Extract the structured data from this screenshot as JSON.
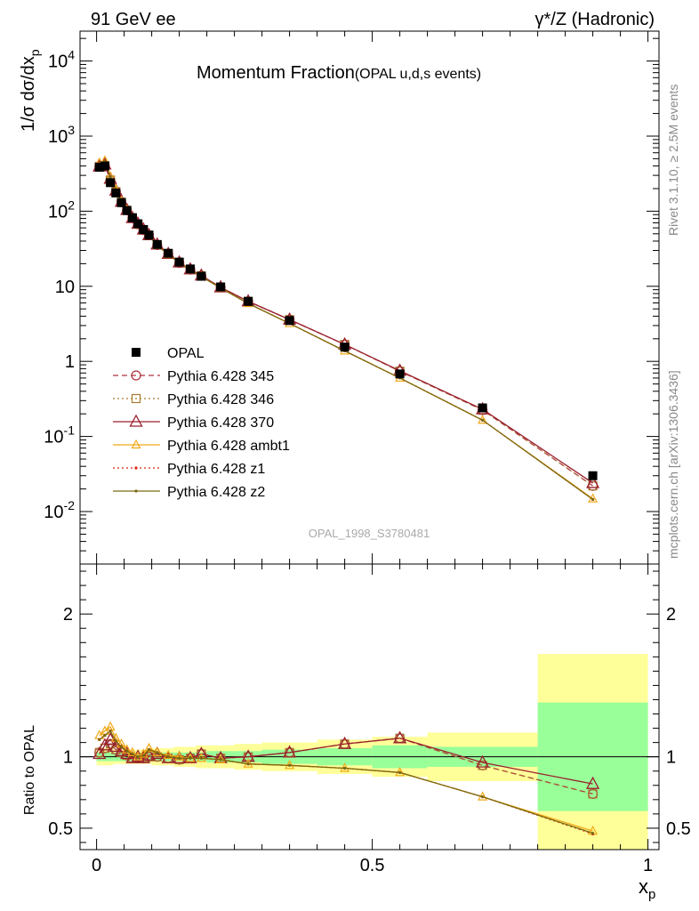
{
  "header": {
    "left": "91 GeV ee",
    "right": "γ*/Z (Hadronic)"
  },
  "side_text": {
    "rivet": "Rivet 3.1.10, ≥ 2.5M events",
    "mcplots": "mcplots.cern.ch [arXiv:1306.3436]"
  },
  "main_title": {
    "main": "Momentum Fraction",
    "sub": "(OPAL u,d,s events)"
  },
  "watermark": "OPAL_1998_S3780481",
  "chart_data": [
    {
      "type": "scatter",
      "panel": "main",
      "ylabel": "1/σ dσ/dx",
      "ylabel_sub": "p",
      "yscale": "log",
      "ylim": [
        0.002,
        25000
      ],
      "xlim": [
        -0.03,
        1.02
      ],
      "ytick_labels": [
        "10^-2",
        "10^-1",
        "1",
        "10",
        "10^2",
        "10^3",
        "10^4"
      ],
      "legend_position": "middle-left",
      "x": [
        0.005,
        0.015,
        0.025,
        0.035,
        0.045,
        0.055,
        0.065,
        0.075,
        0.085,
        0.095,
        0.11,
        0.13,
        0.15,
        0.17,
        0.19,
        0.225,
        0.275,
        0.35,
        0.45,
        0.55,
        0.7,
        0.9
      ],
      "series": [
        {
          "name": "OPAL",
          "color": "#000000",
          "style": "data",
          "values": [
            385,
            400,
            240,
            175,
            130,
            102,
            82,
            68,
            57,
            48,
            36,
            27.5,
            21,
            17,
            13.6,
            9.8,
            6.3,
            3.5,
            1.55,
            0.68,
            0.24,
            0.03
          ]
        },
        {
          "name": "Pythia 6.428 345",
          "color": "#b03040",
          "style": "dashed-circle",
          "values": [
            395,
            405,
            260,
            182,
            132,
            103,
            81,
            67,
            56,
            48,
            35.5,
            27,
            20.5,
            16.7,
            13.8,
            9.7,
            6.3,
            3.6,
            1.68,
            0.74,
            0.225,
            0.022
          ]
        },
        {
          "name": "Pythia 6.428 346",
          "color": "#a87a30",
          "style": "dotted-square",
          "values": [
            395,
            405,
            260,
            182,
            132,
            103,
            81,
            67,
            56,
            48,
            35.5,
            27,
            20.5,
            16.7,
            13.8,
            9.7,
            6.3,
            3.6,
            1.68,
            0.74,
            0.225,
            0.022
          ]
        },
        {
          "name": "Pythia 6.428 370",
          "color": "#9a1f2e",
          "style": "solid-triangle",
          "values": [
            395,
            420,
            270,
            188,
            134,
            104,
            81,
            68,
            57,
            48,
            36,
            27,
            20.8,
            16.8,
            13.9,
            9.7,
            6.3,
            3.6,
            1.68,
            0.75,
            0.23,
            0.024
          ]
        },
        {
          "name": "Pythia 6.428 ambt1",
          "color": "#f0a818",
          "style": "solid-open-triangle",
          "values": [
            440,
            470,
            290,
            195,
            136,
            104,
            81,
            66,
            56,
            47,
            35,
            26.5,
            20.5,
            16.5,
            13.5,
            9.5,
            5.9,
            3.2,
            1.38,
            0.6,
            0.165,
            0.0148
          ]
        },
        {
          "name": "Pythia 6.428 z1",
          "color": "#e02010",
          "style": "dotted-dot",
          "values": [
            430,
            460,
            285,
            193,
            135,
            104,
            81,
            66,
            56,
            47,
            35,
            26.5,
            20.5,
            16.5,
            13.5,
            9.5,
            5.9,
            3.2,
            1.38,
            0.6,
            0.165,
            0.0145
          ]
        },
        {
          "name": "Pythia 6.428 z2",
          "color": "#7a6a10",
          "style": "solid-dot",
          "values": [
            430,
            460,
            285,
            193,
            135,
            104,
            81,
            66,
            56,
            47,
            35,
            26.5,
            20.5,
            16.5,
            13.5,
            9.5,
            5.9,
            3.2,
            1.38,
            0.6,
            0.165,
            0.0145
          ]
        }
      ]
    },
    {
      "type": "line",
      "panel": "ratio",
      "ylabel": "Ratio to OPAL",
      "xlabel": "x",
      "xlabel_sub": "p",
      "ylim": [
        0.35,
        2.35
      ],
      "xlim": [
        -0.03,
        1.02
      ],
      "yticks": [
        0.5,
        1,
        2
      ],
      "ytick_labels": [
        "0.5",
        "1",
        "2"
      ],
      "xticks": [
        0,
        0.5,
        1
      ],
      "xtick_labels": [
        "0",
        "0.5",
        "1"
      ],
      "reference_line": 1,
      "bands": {
        "x_edges": [
          0,
          0.01,
          0.02,
          0.03,
          0.04,
          0.05,
          0.06,
          0.07,
          0.08,
          0.09,
          0.1,
          0.12,
          0.14,
          0.16,
          0.18,
          0.2,
          0.25,
          0.3,
          0.4,
          0.5,
          0.6,
          0.8,
          1.0
        ],
        "yellow_half_width": [
          0.06,
          0.06,
          0.06,
          0.05,
          0.05,
          0.05,
          0.05,
          0.05,
          0.05,
          0.05,
          0.06,
          0.06,
          0.07,
          0.07,
          0.08,
          0.08,
          0.09,
          0.1,
          0.12,
          0.14,
          0.17,
          0.72
        ],
        "green_half_width": [
          0.03,
          0.03,
          0.03,
          0.03,
          0.03,
          0.03,
          0.03,
          0.03,
          0.03,
          0.03,
          0.03,
          0.03,
          0.03,
          0.03,
          0.03,
          0.04,
          0.04,
          0.05,
          0.06,
          0.08,
          0.07,
          0.38
        ],
        "yellow_color": "#ffff99",
        "green_color": "#99ff99"
      },
      "x": [
        0.005,
        0.015,
        0.025,
        0.035,
        0.045,
        0.055,
        0.065,
        0.075,
        0.085,
        0.095,
        0.11,
        0.13,
        0.15,
        0.17,
        0.19,
        0.225,
        0.275,
        0.35,
        0.45,
        0.55,
        0.7,
        0.9
      ],
      "series": [
        {
          "name": "Pythia 6.428 345",
          "color": "#b03040",
          "style": "dashed-circle",
          "values": [
            1.03,
            1.06,
            1.09,
            1.05,
            1.03,
            1.01,
            0.99,
            0.99,
            0.99,
            1.0,
            1.0,
            0.99,
            0.98,
            0.99,
            1.02,
            0.99,
            1.0,
            1.03,
            1.09,
            1.13,
            0.94,
            0.74
          ]
        },
        {
          "name": "Pythia 6.428 346",
          "color": "#a87a30",
          "style": "dotted-square",
          "values": [
            1.03,
            1.06,
            1.09,
            1.05,
            1.03,
            1.01,
            0.99,
            0.99,
            0.99,
            1.0,
            1.0,
            0.99,
            0.98,
            0.99,
            1.02,
            0.99,
            1.0,
            1.03,
            1.09,
            1.13,
            0.94,
            0.74
          ]
        },
        {
          "name": "Pythia 6.428 370",
          "color": "#9a1f2e",
          "style": "solid-triangle",
          "values": [
            1.02,
            1.08,
            1.12,
            1.07,
            1.04,
            1.02,
            0.99,
            1.0,
            0.99,
            1.01,
            1.02,
            0.99,
            0.99,
            0.99,
            1.02,
            0.99,
            1.0,
            1.03,
            1.09,
            1.13,
            0.96,
            0.81
          ]
        },
        {
          "name": "Pythia 6.428 ambt1",
          "color": "#f0a818",
          "style": "solid-open-triangle",
          "values": [
            1.15,
            1.18,
            1.21,
            1.13,
            1.09,
            1.05,
            1.03,
            1.0,
            1.02,
            1.06,
            1.03,
            1.01,
            1.0,
            0.99,
            0.99,
            0.98,
            0.95,
            0.94,
            0.92,
            0.89,
            0.72,
            0.48
          ]
        },
        {
          "name": "Pythia 6.428 z1",
          "color": "#e02010",
          "style": "dotted-dot",
          "values": [
            1.12,
            1.15,
            1.18,
            1.11,
            1.07,
            1.04,
            1.02,
            1.0,
            1.01,
            1.05,
            1.03,
            1.0,
            0.99,
            0.99,
            0.99,
            0.98,
            0.95,
            0.94,
            0.92,
            0.89,
            0.72,
            0.46
          ]
        },
        {
          "name": "Pythia 6.428 z2",
          "color": "#7a6a10",
          "style": "solid-dot",
          "values": [
            1.12,
            1.15,
            1.18,
            1.11,
            1.07,
            1.04,
            1.02,
            1.0,
            1.01,
            1.05,
            1.03,
            1.0,
            0.99,
            0.99,
            0.99,
            0.98,
            0.95,
            0.94,
            0.92,
            0.89,
            0.72,
            0.465
          ]
        }
      ]
    }
  ]
}
